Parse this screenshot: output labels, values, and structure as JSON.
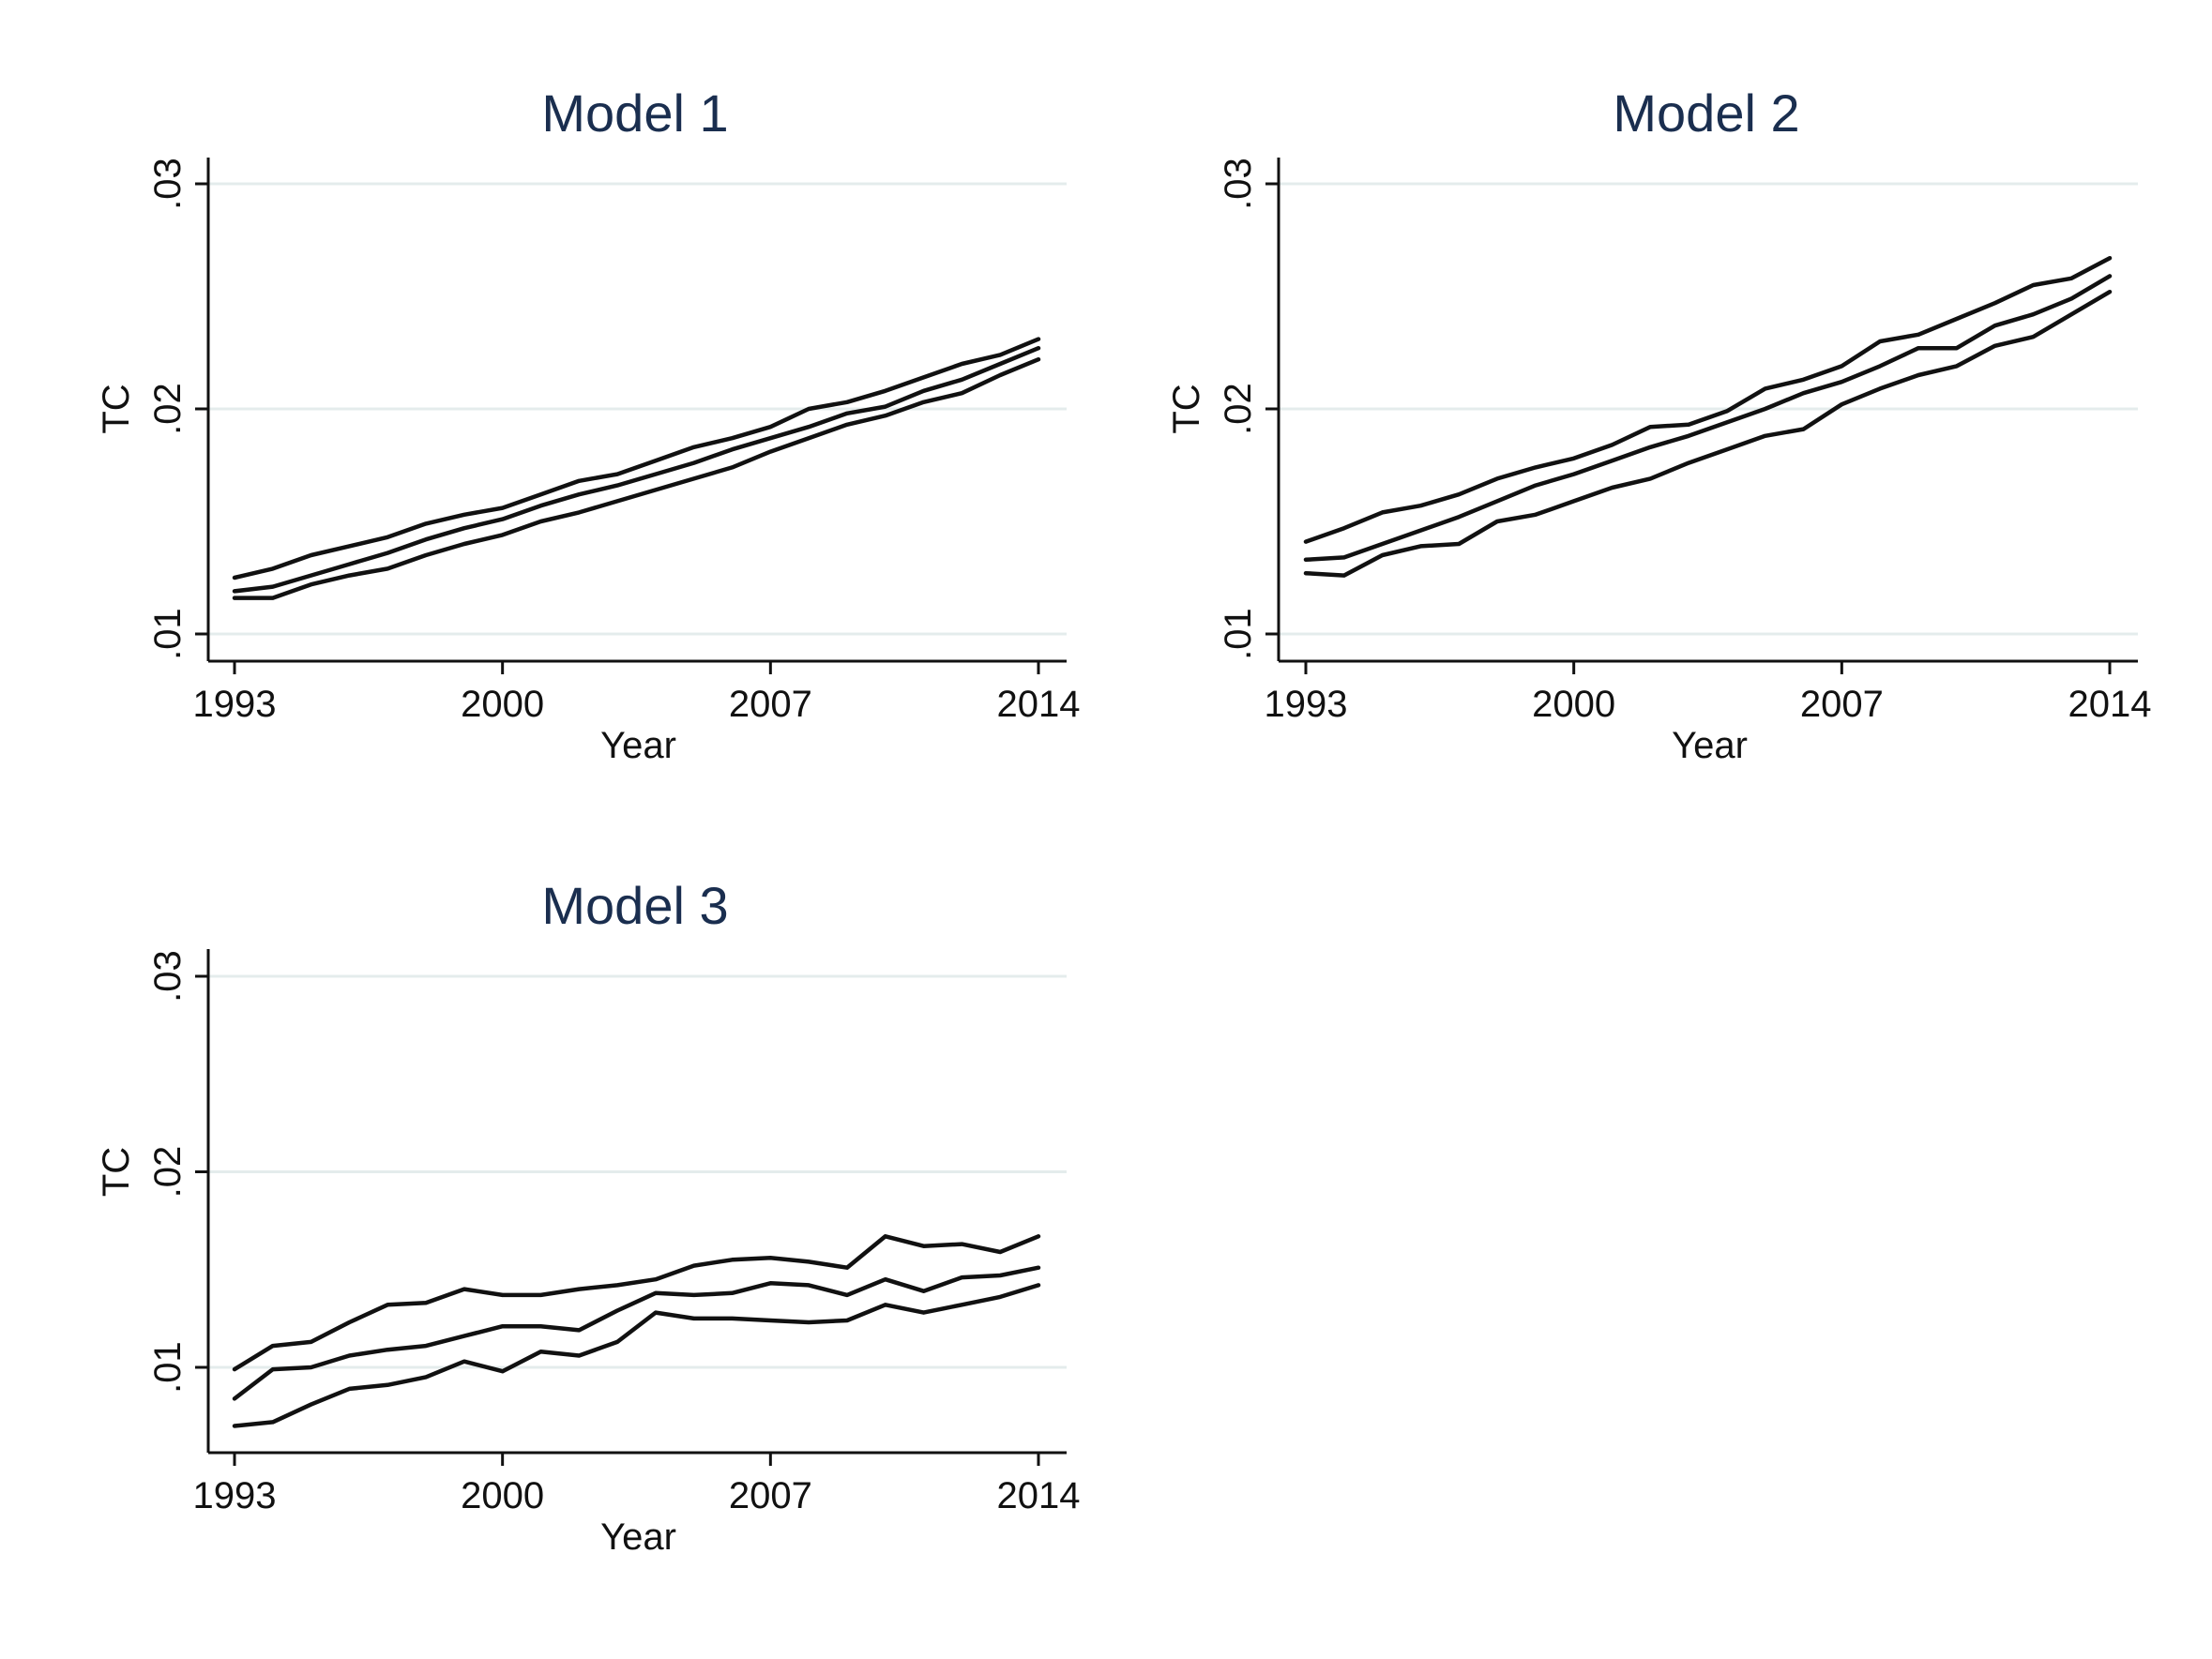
{
  "chart_data": [
    {
      "type": "line",
      "title": "Model 1",
      "xlabel": "Year",
      "ylabel": "TC",
      "xlim": [
        1993,
        2014
      ],
      "ylim": [
        0.0088,
        0.0312
      ],
      "xticks": [
        1993,
        2000,
        2007,
        2014
      ],
      "xtick_labels": [
        "1993",
        "2000",
        "2007",
        "2014"
      ],
      "yticks": [
        0.01,
        0.02,
        0.03
      ],
      "ytick_labels": [
        ".01",
        ".02",
        ".03"
      ],
      "grid": true,
      "x": [
        1993,
        1994,
        1995,
        1996,
        1997,
        1998,
        1999,
        2000,
        2001,
        2002,
        2003,
        2004,
        2005,
        2006,
        2007,
        2008,
        2009,
        2010,
        2011,
        2012,
        2013,
        2014
      ],
      "series": [
        {
          "values": [
            0.0125,
            0.0129,
            0.0135,
            0.0139,
            0.0143,
            0.0149,
            0.0153,
            0.0156,
            0.0162,
            0.0168,
            0.0171,
            0.0177,
            0.0183,
            0.0187,
            0.0192,
            0.02,
            0.0203,
            0.0208,
            0.0214,
            0.022,
            0.0224,
            0.0231
          ]
        },
        {
          "values": [
            0.0119,
            0.0121,
            0.0126,
            0.0131,
            0.0136,
            0.0142,
            0.0147,
            0.0151,
            0.0157,
            0.0162,
            0.0166,
            0.0171,
            0.0176,
            0.0182,
            0.0187,
            0.0192,
            0.0198,
            0.0201,
            0.0208,
            0.0213,
            0.022,
            0.0227
          ]
        },
        {
          "values": [
            0.0116,
            0.0116,
            0.0122,
            0.0126,
            0.0129,
            0.0135,
            0.014,
            0.0144,
            0.015,
            0.0154,
            0.0159,
            0.0164,
            0.0169,
            0.0174,
            0.0181,
            0.0187,
            0.0193,
            0.0197,
            0.0203,
            0.0207,
            0.0215,
            0.0222
          ]
        }
      ]
    },
    {
      "type": "line",
      "title": "Model 2",
      "xlabel": "Year",
      "ylabel": "TC",
      "xlim": [
        1993,
        2014
      ],
      "ylim": [
        0.0088,
        0.0312
      ],
      "xticks": [
        1993,
        2000,
        2007,
        2014
      ],
      "xtick_labels": [
        "1993",
        "2000",
        "2007",
        "2014"
      ],
      "yticks": [
        0.01,
        0.02,
        0.03
      ],
      "ytick_labels": [
        ".01",
        ".02",
        ".03"
      ],
      "grid": true,
      "x": [
        1993,
        1994,
        1995,
        1996,
        1997,
        1998,
        1999,
        2000,
        2001,
        2002,
        2003,
        2004,
        2005,
        2006,
        2007,
        2008,
        2009,
        2010,
        2011,
        2012,
        2013,
        2014
      ],
      "series": [
        {
          "values": [
            0.0141,
            0.0147,
            0.0154,
            0.0157,
            0.0162,
            0.0169,
            0.0174,
            0.0178,
            0.0184,
            0.0192,
            0.0193,
            0.0199,
            0.0209,
            0.0213,
            0.0219,
            0.023,
            0.0233,
            0.024,
            0.0247,
            0.0255,
            0.0258,
            0.0267
          ]
        },
        {
          "values": [
            0.0133,
            0.0134,
            0.014,
            0.0146,
            0.0152,
            0.0159,
            0.0166,
            0.0171,
            0.0177,
            0.0183,
            0.0188,
            0.0194,
            0.02,
            0.0207,
            0.0212,
            0.0219,
            0.0227,
            0.0227,
            0.0237,
            0.0242,
            0.0249,
            0.0259
          ]
        },
        {
          "values": [
            0.0127,
            0.0126,
            0.0135,
            0.0139,
            0.014,
            0.015,
            0.0153,
            0.0159,
            0.0165,
            0.0169,
            0.0176,
            0.0182,
            0.0188,
            0.0191,
            0.0202,
            0.0209,
            0.0215,
            0.0219,
            0.0228,
            0.0232,
            0.0242,
            0.0252
          ]
        }
      ]
    },
    {
      "type": "line",
      "title": "Model 3",
      "xlabel": "Year",
      "ylabel": "TC",
      "xlim": [
        1993,
        2014
      ],
      "ylim": [
        0.0057,
        0.0312
      ],
      "xticks": [
        1993,
        2000,
        2007,
        2014
      ],
      "xtick_labels": [
        "1993",
        "2000",
        "2007",
        "2014"
      ],
      "yticks": [
        0.01,
        0.02,
        0.03
      ],
      "ytick_labels": [
        ".01",
        ".02",
        ".03"
      ],
      "grid": true,
      "x": [
        1993,
        1994,
        1995,
        1996,
        1997,
        1998,
        1999,
        2000,
        2001,
        2002,
        2003,
        2004,
        2005,
        2006,
        2007,
        2008,
        2009,
        2010,
        2011,
        2012,
        2013,
        2014
      ],
      "series": [
        {
          "values": [
            0.0099,
            0.0111,
            0.0113,
            0.0123,
            0.0132,
            0.0133,
            0.014,
            0.0137,
            0.0137,
            0.014,
            0.0142,
            0.0145,
            0.0152,
            0.0155,
            0.0156,
            0.0154,
            0.0151,
            0.0167,
            0.0162,
            0.0163,
            0.0159,
            0.0167
          ]
        },
        {
          "values": [
            0.0084,
            0.0099,
            0.01,
            0.0106,
            0.0109,
            0.0111,
            0.0116,
            0.0121,
            0.0121,
            0.0119,
            0.0129,
            0.0138,
            0.0137,
            0.0138,
            0.0143,
            0.0142,
            0.0137,
            0.0145,
            0.0139,
            0.0146,
            0.0147,
            0.0151
          ]
        },
        {
          "values": [
            0.007,
            0.0072,
            0.0081,
            0.0089,
            0.0091,
            0.0095,
            0.0103,
            0.0098,
            0.0108,
            0.0106,
            0.0113,
            0.0128,
            0.0125,
            0.0125,
            0.0124,
            0.0123,
            0.0124,
            0.0132,
            0.0128,
            0.0132,
            0.0136,
            0.0142
          ]
        }
      ]
    }
  ]
}
